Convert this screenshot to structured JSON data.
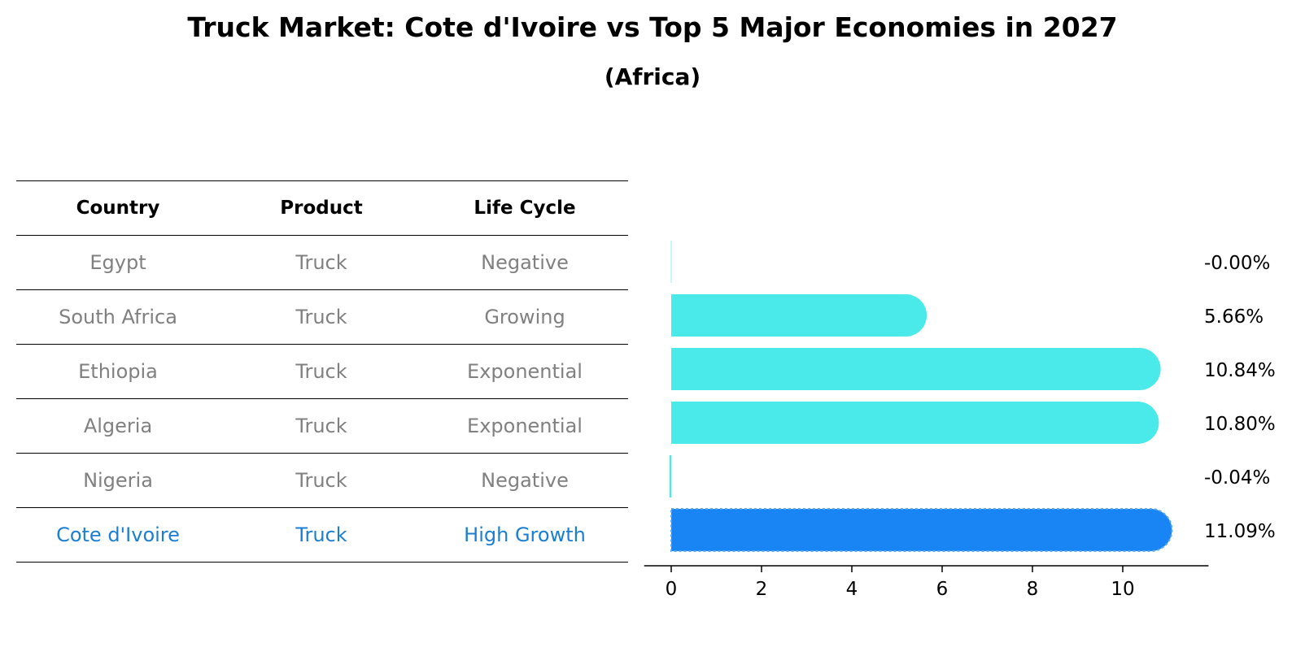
{
  "chart_data": {
    "type": "bar",
    "orientation": "horizontal",
    "title": "Truck Market: Cote d'Ivoire vs Top 5 Major Economies in 2027",
    "subtitle": "(Africa)",
    "categories": [
      "Egypt",
      "South Africa",
      "Ethiopia",
      "Algeria",
      "Nigeria",
      "Cote d'Ivoire"
    ],
    "values": [
      -0.001,
      5.66,
      10.84,
      10.8,
      -0.04,
      11.09
    ],
    "value_labels": [
      "-0.00%",
      "5.66%",
      "10.84%",
      "10.80%",
      "-0.04%",
      "11.09%"
    ],
    "xticks": [
      "0",
      "2",
      "4",
      "6",
      "8",
      "10"
    ],
    "xlim": [
      -0.6,
      11.9
    ],
    "xlabel": "",
    "ylabel": "",
    "highlight": "Cote d'Ivoire",
    "colors": {
      "bar": "#4beaea",
      "highlight": "#1985f5",
      "table_text": "#808080",
      "table_highlight": "#1a7fd4"
    }
  },
  "table": {
    "headers": [
      "Country",
      "Product",
      "Life Cycle"
    ],
    "rows": [
      [
        "Egypt",
        "Truck",
        "Negative"
      ],
      [
        "South Africa",
        "Truck",
        "Growing"
      ],
      [
        "Ethiopia",
        "Truck",
        "Exponential"
      ],
      [
        "Algeria",
        "Truck",
        "Exponential"
      ],
      [
        "Nigeria",
        "Truck",
        "Negative"
      ],
      [
        "Cote d'Ivoire",
        "Truck",
        "High Growth"
      ]
    ]
  }
}
